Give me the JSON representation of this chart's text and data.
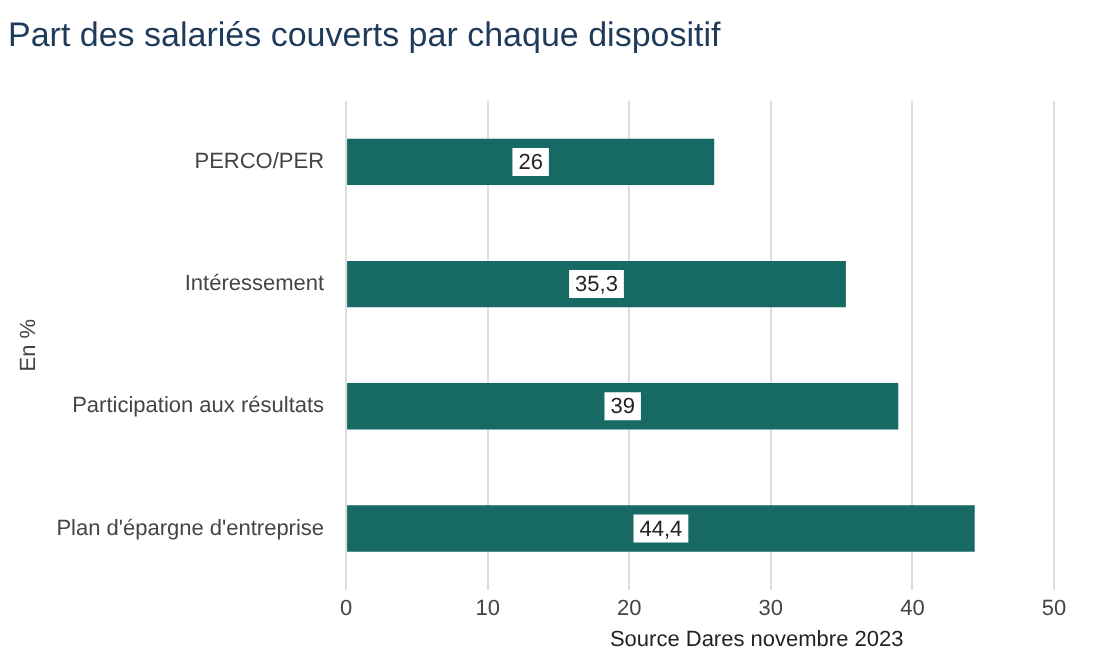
{
  "chart_data": {
    "type": "bar",
    "orientation": "horizontal",
    "title": "Part des salariés couverts par chaque dispositif",
    "ylabel": "En %",
    "categories": [
      "PERCO/PER",
      "Intéressement",
      "Participation aux résultats",
      "Plan d'épargne d'entreprise"
    ],
    "values": [
      26,
      35.3,
      39,
      44.4
    ],
    "value_labels": [
      "26",
      "35,3",
      "39",
      "44,4"
    ],
    "color": "#166a63",
    "xlim": [
      0,
      50
    ],
    "xticks": [
      0,
      10,
      20,
      30,
      40,
      50
    ],
    "grid": "x",
    "legend": false,
    "annotations": [
      "Source Dares novembre 2023"
    ]
  }
}
